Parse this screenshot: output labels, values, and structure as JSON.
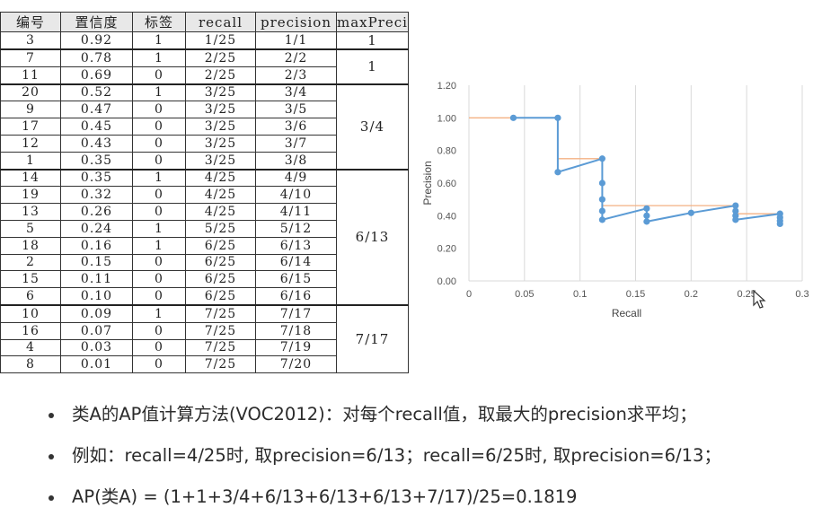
{
  "table": {
    "headers": [
      "编号",
      "置信度",
      "标签",
      "recall",
      "precision",
      "maxPreci"
    ],
    "rows": [
      [
        "3",
        "0.92",
        "1",
        "1/25",
        "1/1"
      ],
      [
        "7",
        "0.78",
        "1",
        "2/25",
        "2/2"
      ],
      [
        "11",
        "0.69",
        "0",
        "2/25",
        "2/3"
      ],
      [
        "20",
        "0.52",
        "1",
        "3/25",
        "3/4"
      ],
      [
        "9",
        "0.47",
        "0",
        "3/25",
        "3/5"
      ],
      [
        "17",
        "0.45",
        "0",
        "3/25",
        "3/6"
      ],
      [
        "12",
        "0.43",
        "0",
        "3/25",
        "3/7"
      ],
      [
        "1",
        "0.35",
        "0",
        "3/25",
        "3/8"
      ],
      [
        "14",
        "0.35",
        "1",
        "4/25",
        "4/9"
      ],
      [
        "19",
        "0.32",
        "0",
        "4/25",
        "4/10"
      ],
      [
        "13",
        "0.26",
        "0",
        "4/25",
        "4/11"
      ],
      [
        "5",
        "0.24",
        "1",
        "5/25",
        "5/12"
      ],
      [
        "18",
        "0.16",
        "1",
        "6/25",
        "6/13"
      ],
      [
        "2",
        "0.15",
        "0",
        "6/25",
        "6/14"
      ],
      [
        "15",
        "0.11",
        "0",
        "6/25",
        "6/15"
      ],
      [
        "6",
        "0.10",
        "0",
        "6/25",
        "6/16"
      ],
      [
        "10",
        "0.09",
        "1",
        "7/25",
        "7/17"
      ],
      [
        "16",
        "0.07",
        "0",
        "7/25",
        "7/18"
      ],
      [
        "4",
        "0.03",
        "0",
        "7/25",
        "7/19"
      ],
      [
        "8",
        "0.01",
        "0",
        "7/25",
        "7/20"
      ]
    ],
    "maxp_groups": [
      {
        "label": "1",
        "span": 1
      },
      {
        "label": "1",
        "span": 2
      },
      {
        "label": "3/4",
        "span": 5
      },
      {
        "label": "6/13",
        "span": 8
      },
      {
        "label": "7/17",
        "span": 4
      }
    ]
  },
  "chart_data": {
    "type": "line",
    "xlabel": "Recall",
    "ylabel": "Precision",
    "xlim": [
      0,
      0.3
    ],
    "ylim": [
      0,
      1.2
    ],
    "x_ticks": [
      "0",
      "0.05",
      "0.1",
      "0.15",
      "0.2",
      "0.25",
      "0.3"
    ],
    "y_ticks": [
      "0.00",
      "0.20",
      "0.40",
      "0.60",
      "0.80",
      "1.00",
      "1.20"
    ],
    "grid": "vertical",
    "series": [
      {
        "color": "#5b9bd5",
        "x": [
          0.04,
          0.08,
          0.08,
          0.12,
          0.12,
          0.12,
          0.12,
          0.12,
          0.16,
          0.16,
          0.16,
          0.2,
          0.24,
          0.24,
          0.24,
          0.24,
          0.28,
          0.28,
          0.28,
          0.28
        ],
        "y": [
          1.0,
          1.0,
          0.667,
          0.75,
          0.6,
          0.5,
          0.429,
          0.375,
          0.444,
          0.4,
          0.364,
          0.417,
          0.462,
          0.429,
          0.4,
          0.375,
          0.412,
          0.389,
          0.368,
          0.35
        ]
      },
      {
        "color": "#f4b183",
        "x": [
          0,
          0.04,
          0.08,
          0.08,
          0.12,
          0.12,
          0.16,
          0.24,
          0.24,
          0.28
        ],
        "y": [
          1.0,
          1.0,
          1.0,
          0.75,
          0.75,
          0.462,
          0.462,
          0.462,
          0.412,
          0.412
        ]
      }
    ]
  },
  "bullets": [
    "类A的AP值计算方法(VOC2012)：对每个recall值，取最大的precision求平均；",
    "例如：recall=4/25时, 取precision=6/13；recall=6/25时, 取precision=6/13；",
    "AP(类A) = (1+1+3/4+6/13+6/13+6/13+7/17)/25=0.1819"
  ]
}
